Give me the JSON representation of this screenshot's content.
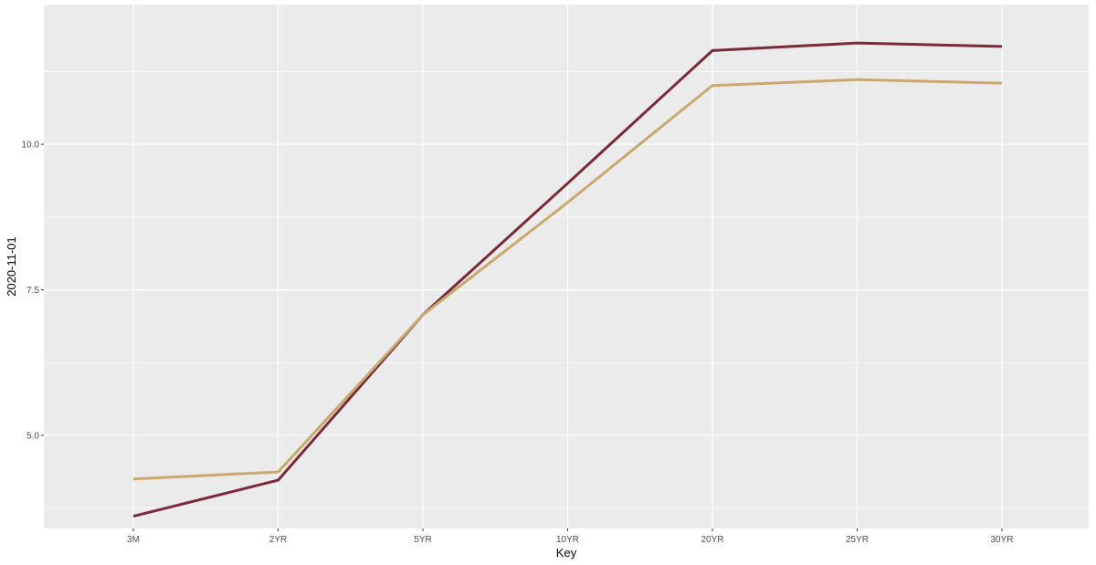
{
  "chart_data": {
    "type": "line",
    "title": "",
    "xlabel": "Key",
    "ylabel": "2020-11-01",
    "categories": [
      "3M",
      "2YR",
      "5YR",
      "10YR",
      "20YR",
      "25YR",
      "30YR"
    ],
    "ylim": [
      3.4,
      12.4
    ],
    "yticks": [
      5.0,
      7.5,
      10.0
    ],
    "ytick_labels": [
      "5.0",
      "7.5",
      "10.0"
    ],
    "grid": true,
    "legend": "none",
    "panel_color": "#ebebeb",
    "grid_color": "#ffffff",
    "series": [
      {
        "color": "#7b2a3b",
        "values": [
          3.61,
          4.23,
          7.07,
          9.33,
          11.61,
          11.74,
          11.68
        ]
      },
      {
        "color": "#c8aa70",
        "values": [
          4.25,
          4.37,
          7.07,
          9.0,
          11.01,
          11.11,
          11.05
        ]
      }
    ]
  }
}
